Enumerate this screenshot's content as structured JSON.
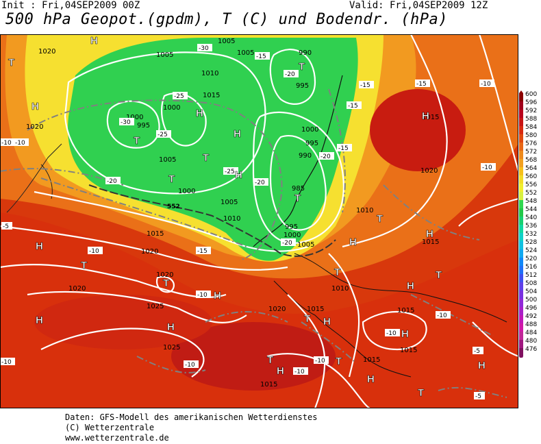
{
  "header": {
    "init_text": "Init : Fri,04SEP2009 00Z",
    "valid_text": "Valid: Fri,04SEP2009 12Z",
    "title": "500 hPa Geopot.(gpdm), T (C) und Bodendr. (hPa)"
  },
  "footer": {
    "line1": "Daten: GFS-Modell des amerikanischen Wetterdienstes",
    "line2": "(C) Wetterzentrale",
    "line3": "www.wetterzentrale.de"
  },
  "legend": {
    "levels": [
      "600",
      "596",
      "592",
      "588",
      "584",
      "580",
      "576",
      "572",
      "568",
      "564",
      "560",
      "556",
      "552",
      "548",
      "544",
      "540",
      "536",
      "532",
      "528",
      "524",
      "520",
      "516",
      "512",
      "508",
      "504",
      "500",
      "496",
      "492",
      "488",
      "484",
      "480",
      "476"
    ],
    "colors": [
      "#8b0000",
      "#a0001c",
      "#b8001c",
      "#c81414",
      "#d82a10",
      "#e04a10",
      "#e86818",
      "#ee8a1c",
      "#f2a020",
      "#f6c01c",
      "#f2dc28",
      "#f0ee30",
      "#d8f040",
      "#30d850",
      "#22c848",
      "#18d070",
      "#10d8a0",
      "#10d0c8",
      "#10c0e0",
      "#10a8f0",
      "#1088f8",
      "#2070f8",
      "#4050f0",
      "#6040e8",
      "#7830e0",
      "#9028d8",
      "#a820c8",
      "#c018b8",
      "#d018a8",
      "#c02898",
      "#a01880",
      "#801060"
    ]
  },
  "map": {
    "pressure_labels": [
      "1020",
      "1005",
      "1005",
      "1010",
      "1015",
      "1000",
      "995",
      "1020",
      "1005",
      "1000",
      "1000",
      "1005",
      "990",
      "995",
      "1000",
      "995",
      "990",
      "985",
      "1010",
      "1005",
      "1015",
      "1010",
      "995",
      "1000",
      "1005",
      "1015",
      "1015",
      "1020",
      "1020",
      "1020",
      "1025",
      "1025",
      "1020",
      "1015",
      "1010",
      "1015",
      "1015",
      "1015",
      "1015",
      "1020"
    ],
    "temp_labels": [
      "-30",
      "-25",
      "-20",
      "-15",
      "-30",
      "-25",
      "-20",
      "-25",
      "-20",
      "-20",
      "-15",
      "-15",
      "-15",
      "-10",
      "-15",
      "-10",
      "-20",
      "-10",
      "-10",
      "-5",
      "-10",
      "-15",
      "-10",
      "-10",
      "-10",
      "-10",
      "-10",
      "-5",
      "-5",
      "-10",
      "-10"
    ],
    "geopot_label": "552",
    "high_symbol": "H",
    "low_symbol": "T"
  },
  "colors": {
    "background": "#ffffff",
    "contour": "#ffffff",
    "temp_dash": "#888888"
  }
}
